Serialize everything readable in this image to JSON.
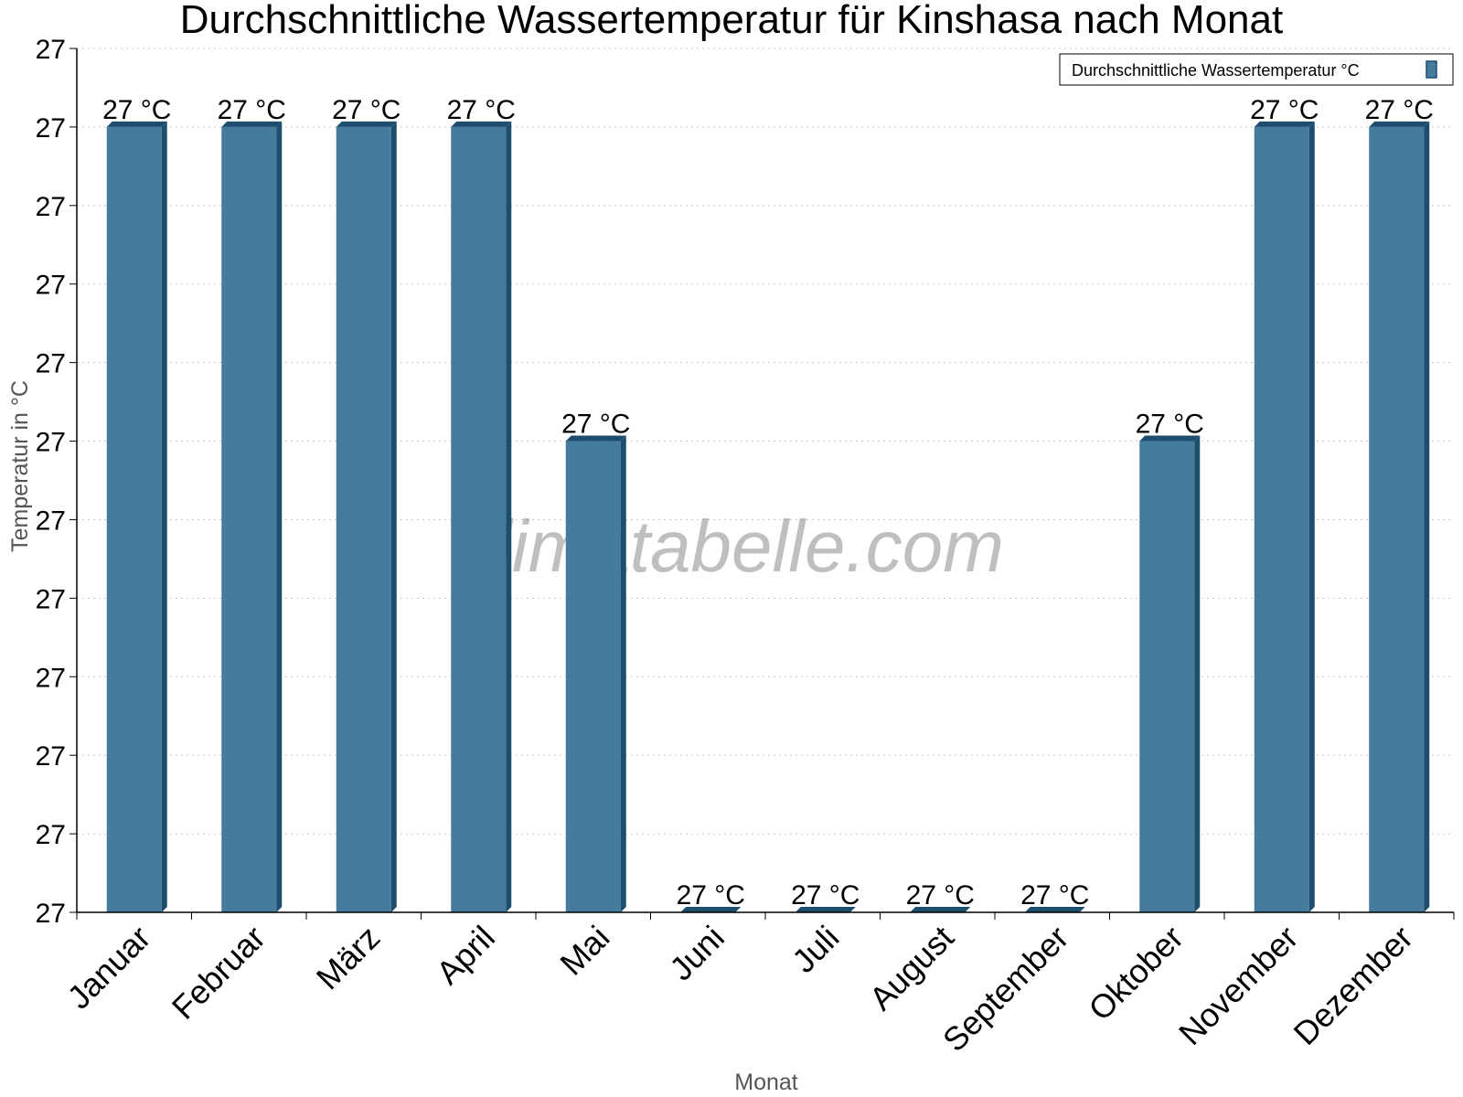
{
  "watermark": "klimatabelle.com",
  "colors": {
    "bar_front": "#457b9d",
    "bar_side": "#1d4e6e",
    "bar_top": "#1d4e6e",
    "grid": "#c8c8c8",
    "axis": "#000000"
  },
  "chart_data": {
    "type": "bar",
    "title": "Durchschnittliche Wassertemperatur für Kinshasa nach Monat",
    "xlabel": "Monat",
    "ylabel": "Temperatur in °C",
    "categories": [
      "Januar",
      "Februar",
      "März",
      "April",
      "Mai",
      "Juni",
      "Juli",
      "August",
      "September",
      "Oktober",
      "November",
      "Dezember"
    ],
    "series": [
      {
        "name": "Durchschnittliche Wassertemperatur °C",
        "values": [
          27.0,
          27.0,
          27.0,
          27.0,
          26.8,
          26.5,
          26.5,
          26.5,
          26.5,
          26.8,
          27.0,
          27.0
        ],
        "labels": [
          "27 °C",
          "27 °C",
          "27 °C",
          "27 °C",
          "27 °C",
          "27 °C",
          "27 °C",
          "27 °C",
          "27 °C",
          "27 °C",
          "27 °C",
          "27 °C"
        ]
      }
    ],
    "ylim": [
      26.5,
      27.05
    ],
    "y_ticks": [
      26.5,
      26.55,
      26.6,
      26.65,
      26.7,
      26.75,
      26.8,
      26.85,
      26.9,
      26.95,
      27.0,
      27.05
    ],
    "y_tick_labels": [
      "27",
      "27",
      "27",
      "27",
      "27",
      "27",
      "27",
      "27",
      "27",
      "27",
      "27",
      "27"
    ],
    "grid": true,
    "legend": "top-right"
  }
}
